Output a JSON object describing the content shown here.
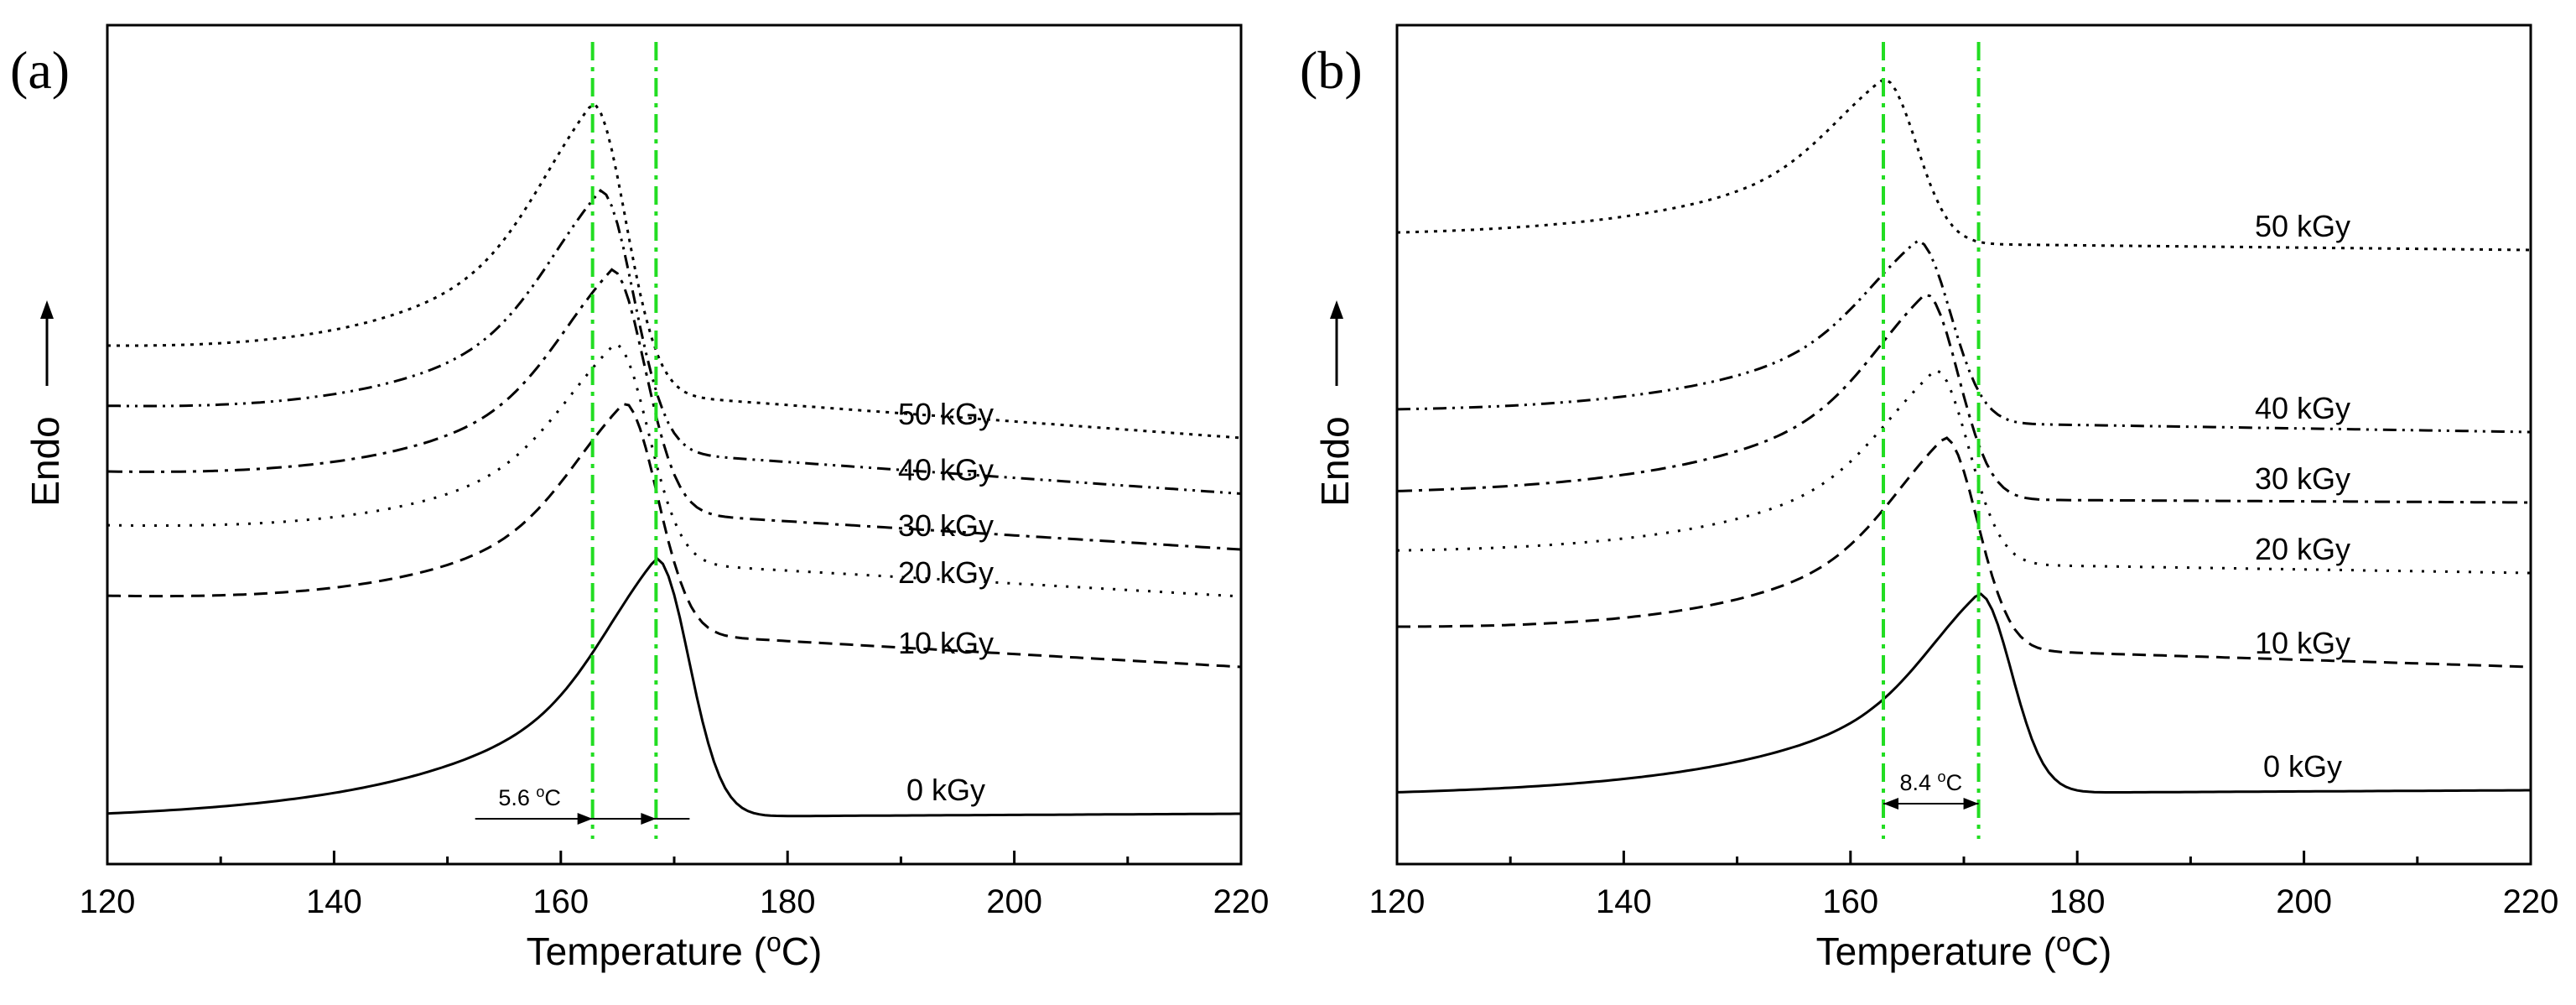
{
  "chart_data": [
    {
      "type": "line",
      "panel_label": "(a)",
      "xlabel": "Temperature (°C)",
      "xlabel_main": "Temperature (",
      "xlabel_sup": "o",
      "xlabel_tail": "C)",
      "ylabel": "Endo",
      "xlim": [
        120,
        220
      ],
      "xticks": [
        120,
        140,
        160,
        180,
        200,
        220
      ],
      "yticks_shown": false,
      "series": [
        {
          "name": "50 kGy",
          "style": "dotted",
          "baseline_left": 0.52,
          "baseline_right": 0.66,
          "peak_T": 162.8,
          "peak": 0.03
        },
        {
          "name": "40 kGy",
          "style": "dash-dot-dot",
          "baseline_left": 0.62,
          "baseline_right": 0.755,
          "peak_T": 163.5,
          "peak": 0.18
        },
        {
          "name": "30 kGy",
          "style": "dash-dot",
          "baseline_left": 0.73,
          "baseline_right": 0.85,
          "peak_T": 164.5,
          "peak": 0.32
        },
        {
          "name": "20 kGy",
          "style": "sparse-dot",
          "baseline_left": 0.82,
          "baseline_right": 0.93,
          "peak_T": 164.8,
          "peak": 0.45
        },
        {
          "name": "10 kGy",
          "style": "dashed",
          "baseline_left": 0.94,
          "baseline_right": 1.05,
          "peak_T": 165.6,
          "peak": 0.55
        },
        {
          "name": "0  kGy",
          "style": "solid",
          "baseline_left": 1.31,
          "baseline_right": 1.3,
          "peak_T": 168.4,
          "peak": 0.87
        }
      ],
      "reference_lines_T": [
        162.8,
        168.4
      ],
      "annotation": {
        "text": "5.6 °C",
        "main": "5.6 ",
        "sup": "o",
        "tail": "C",
        "from_T": 162.8,
        "to_T": 168.4
      }
    },
    {
      "type": "line",
      "panel_label": "(b)",
      "xlabel": "Temperature (°C)",
      "xlabel_main": "Temperature (",
      "xlabel_sup": "o",
      "xlabel_tail": "C)",
      "ylabel": "Endo",
      "xlim": [
        120,
        220
      ],
      "xticks": [
        120,
        140,
        160,
        180,
        200,
        220
      ],
      "yticks_shown": false,
      "series": [
        {
          "name": "50  kGy",
          "style": "dotted",
          "baseline_left": 0.32,
          "baseline_right": 0.34,
          "peak_T": 162.9,
          "peak": 0.04
        },
        {
          "name": "40  kGy",
          "style": "dash-dot-dot",
          "baseline_left": 0.62,
          "baseline_right": 0.65,
          "peak_T": 165.9,
          "peak": 0.31
        },
        {
          "name": "30  kGy",
          "style": "dash-dot",
          "baseline_left": 0.76,
          "baseline_right": 0.77,
          "peak_T": 166.6,
          "peak": 0.41
        },
        {
          "name": "20  kGy",
          "style": "sparse-dot",
          "baseline_left": 0.86,
          "baseline_right": 0.89,
          "peak_T": 167.5,
          "peak": 0.53
        },
        {
          "name": "10  kGy",
          "style": "dashed",
          "baseline_left": 0.99,
          "baseline_right": 1.05,
          "peak_T": 168.3,
          "peak": 0.63
        },
        {
          "name": "0  kGy",
          "style": "solid",
          "baseline_left": 1.27,
          "baseline_right": 1.26,
          "peak_T": 171.3,
          "peak": 0.93
        }
      ],
      "reference_lines_T": [
        162.9,
        171.3
      ],
      "annotation": {
        "text": "8.4 °C",
        "main": "8.4 ",
        "sup": "o",
        "tail": "C",
        "from_T": 162.9,
        "to_T": 171.3
      }
    }
  ],
  "colors": {
    "curve": "#000000",
    "reference_line": "#22dd22",
    "axis": "#000000",
    "background": "#ffffff"
  }
}
